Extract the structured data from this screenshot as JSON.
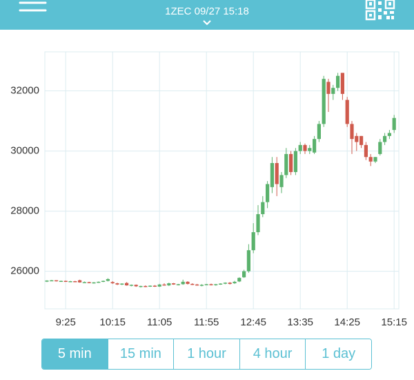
{
  "header": {
    "subtitle": "1ZEC  09/27 15:18"
  },
  "chart_data": {
    "type": "candlestick",
    "categories": [
      null,
      null,
      null,
      null,
      "9:25",
      null,
      null,
      null,
      null,
      null,
      null,
      null,
      null,
      null,
      "10:15",
      null,
      null,
      null,
      null,
      null,
      null,
      null,
      null,
      null,
      "11:05",
      null,
      null,
      null,
      null,
      null,
      null,
      null,
      null,
      null,
      "11:55",
      null,
      null,
      null,
      null,
      null,
      null,
      null,
      null,
      null,
      "12:45",
      null,
      null,
      null,
      null,
      null,
      null,
      null,
      null,
      null,
      "13:35",
      null,
      null,
      null,
      null,
      null,
      null,
      null,
      null,
      null,
      "14:25",
      null,
      null,
      null,
      null,
      null,
      null,
      null,
      null,
      null,
      "15:15"
    ],
    "open": [
      25660,
      25690,
      25700,
      25670,
      25680,
      25660,
      25670,
      25700,
      25630,
      25640,
      25610,
      25630,
      25650,
      25680,
      25640,
      25600,
      25560,
      25610,
      25530,
      25550,
      25480,
      25510,
      25490,
      25520,
      25490,
      25560,
      25530,
      25600,
      25560,
      25570,
      25650,
      25580,
      25560,
      25540,
      25550,
      25570,
      25540,
      25570,
      25590,
      25620,
      25600,
      25660,
      25800,
      26000,
      26700,
      27300,
      27900,
      28300,
      28800,
      29600,
      28800,
      29200,
      29900,
      29300,
      30000,
      30200,
      30000,
      29950,
      30400,
      30900,
      32300,
      31900,
      32100,
      32600,
      31700,
      30900,
      30500,
      30500,
      30200,
      29800,
      29650,
      29900,
      30300,
      30500,
      30700
    ],
    "high": [
      25700,
      25710,
      25700,
      25690,
      25690,
      25680,
      25680,
      25720,
      25660,
      25650,
      25640,
      25660,
      25690,
      25770,
      25670,
      25620,
      25600,
      25640,
      25560,
      25560,
      25520,
      25530,
      25530,
      25540,
      25580,
      25600,
      25620,
      25610,
      25580,
      25720,
      25670,
      25600,
      25580,
      25570,
      25580,
      25590,
      25580,
      25600,
      25630,
      25640,
      25680,
      25800,
      26050,
      26900,
      27600,
      28200,
      28500,
      29000,
      29800,
      29800,
      29300,
      30100,
      30000,
      30100,
      30300,
      30250,
      30200,
      30500,
      31000,
      32500,
      32400,
      32200,
      32600,
      32600,
      31800,
      31000,
      30600,
      30500,
      30300,
      29900,
      29800,
      30400,
      30600,
      30700,
      31200
    ],
    "low": [
      25640,
      25670,
      25660,
      25650,
      25650,
      25640,
      25640,
      25620,
      25610,
      25600,
      25590,
      25610,
      25640,
      25660,
      25580,
      25540,
      25540,
      25520,
      25500,
      25480,
      25460,
      25470,
      25480,
      25480,
      25480,
      25520,
      25510,
      25550,
      25530,
      25550,
      25560,
      25540,
      25520,
      25500,
      25540,
      25530,
      25520,
      25550,
      25570,
      25560,
      25580,
      25640,
      25780,
      25950,
      26600,
      27200,
      27800,
      28100,
      28600,
      28500,
      28600,
      29100,
      29200,
      29200,
      29900,
      29900,
      29900,
      29900,
      30300,
      30800,
      31300,
      31700,
      32000,
      31700,
      30800,
      29900,
      30000,
      30100,
      29700,
      29500,
      29600,
      29850,
      30200,
      30400,
      30600
    ],
    "close": [
      25690,
      25700,
      25670,
      25680,
      25660,
      25670,
      25650,
      25630,
      25640,
      25610,
      25630,
      25650,
      25680,
      25740,
      25600,
      25560,
      25590,
      25530,
      25550,
      25500,
      25510,
      25490,
      25520,
      25490,
      25560,
      25530,
      25600,
      25560,
      25570,
      25650,
      25580,
      25560,
      25540,
      25550,
      25570,
      25540,
      25570,
      25590,
      25620,
      25580,
      25650,
      25780,
      26000,
      26700,
      27300,
      27900,
      28300,
      28900,
      29600,
      28900,
      29200,
      29900,
      29300,
      30000,
      30200,
      30000,
      30100,
      30400,
      30900,
      32400,
      31900,
      32100,
      32500,
      31900,
      30900,
      30400,
      30300,
      30200,
      29800,
      29650,
      29800,
      30300,
      30500,
      30600,
      31100
    ],
    "up_color": "#5bb26d",
    "down_color": "#cf5a4c",
    "ylim": [
      24750,
      33300
    ],
    "yticks": [
      26000,
      28000,
      30000,
      32000
    ],
    "grid": true
  },
  "intervals": {
    "options": [
      "5 min",
      "15 min",
      "1 hour",
      "4 hour",
      "1 day"
    ],
    "selected": 0
  }
}
